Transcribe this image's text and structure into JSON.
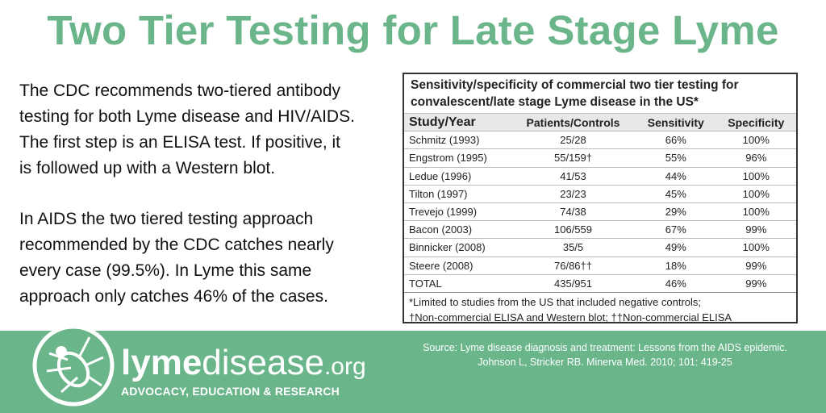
{
  "header": {
    "title": "Two Tier Testing for Late Stage Lyme"
  },
  "body": {
    "paragraphs": [
      [
        "The CDC recommends two-tiered antibody",
        "testing for both Lyme disease and HIV/AIDS.",
        "The first step is an ELISA test. If positive, it",
        "is followed up with a Western blot."
      ],
      [
        "In AIDS the two tiered testing approach",
        "recommended by the CDC catches nearly",
        "every case (99.5%). In Lyme this same",
        "approach only catches 46% of the cases."
      ]
    ]
  },
  "table": {
    "caption": [
      "Sensitivity/specificity of commercial two tier testing for",
      "convalescent/late stage Lyme disease in the US*"
    ],
    "columns": [
      "Study/Year",
      "Patients/Controls",
      "Sensitivity",
      "Specificity"
    ],
    "rows": [
      [
        "Schmitz (1993)",
        "25/28",
        "66%",
        "100%"
      ],
      [
        "Engstrom (1995)",
        "55/159†",
        "55%",
        "96%"
      ],
      [
        "Ledue (1996)",
        "41/53",
        "44%",
        "100%"
      ],
      [
        "Tilton (1997)",
        "23/23",
        "45%",
        "100%"
      ],
      [
        "Trevejo (1999)",
        "74/38",
        "29%",
        "100%"
      ],
      [
        "Bacon (2003)",
        "106/559",
        "67%",
        "99%"
      ],
      [
        "Binnicker (2008)",
        "35/5",
        "49%",
        "100%"
      ],
      [
        "Steere (2008)",
        "76/86††",
        "18%",
        "99%"
      ],
      [
        "TOTAL",
        "435/951",
        "46%",
        "99%"
      ]
    ],
    "footnotes": [
      "*Limited to studies from the US that included negative controls;",
      "†Non-commercial ELISA and Western blot; ††Non-commercial ELISA"
    ]
  },
  "footer": {
    "logo": {
      "bold": "lyme",
      "rest": "disease",
      "suffix": ".org",
      "tagline": "ADVOCACY, EDUCATION & RESEARCH"
    },
    "source": [
      "Source: Lyme disease diagnosis and treatment: Lessons from the AIDS epidemic.",
      "Johnson L, Stricker RB. Minerva Med. 2010; 101: 419-25"
    ]
  }
}
